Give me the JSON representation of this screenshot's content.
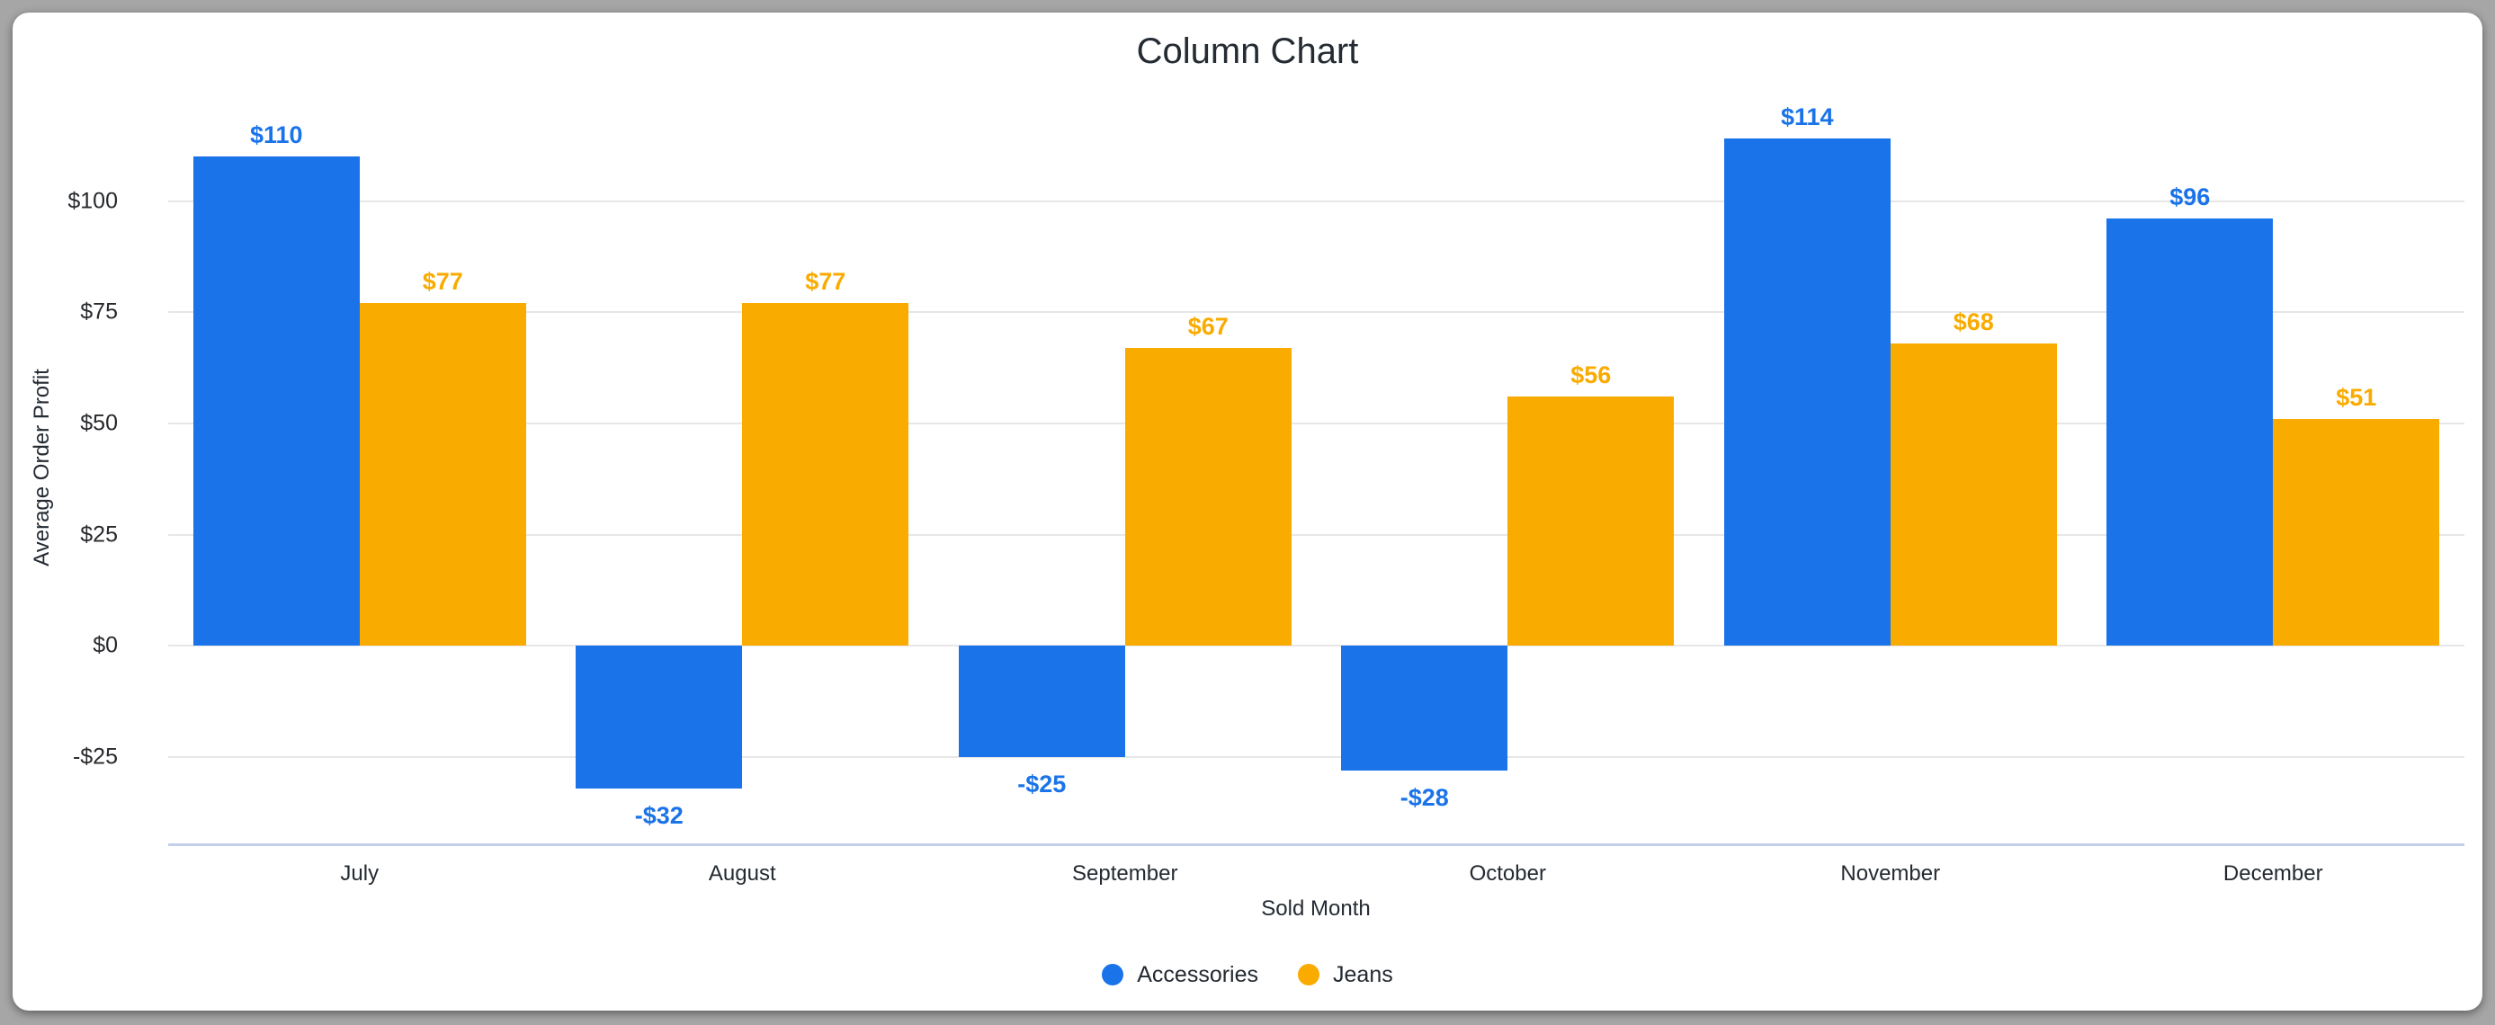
{
  "window": {
    "frame_color": "#a6a6a6",
    "card_color": "#ffffff"
  },
  "chart_data": {
    "type": "bar",
    "title": "Column Chart",
    "xlabel": "Sold Month",
    "ylabel": "Average Order Profit",
    "categories": [
      "July",
      "August",
      "September",
      "October",
      "November",
      "December"
    ],
    "series": [
      {
        "name": "Accessories",
        "color": "#1a73e8",
        "values": [
          110,
          -32,
          -25,
          -28,
          114,
          96
        ],
        "labels": [
          "$110",
          "-$32",
          "-$25",
          "-$28",
          "$114",
          "$96"
        ]
      },
      {
        "name": "Jeans",
        "color": "#f9ab00",
        "values": [
          77,
          77,
          67,
          56,
          68,
          51
        ],
        "labels": [
          "$77",
          "$77",
          "$67",
          "$56",
          "$68",
          "$51"
        ]
      }
    ],
    "y_ticks": [
      {
        "value": 100,
        "label": "$100"
      },
      {
        "value": 75,
        "label": "$75"
      },
      {
        "value": 50,
        "label": "$50"
      },
      {
        "value": 25,
        "label": "$25"
      },
      {
        "value": 0,
        "label": "$0"
      },
      {
        "value": -25,
        "label": "-$25"
      }
    ],
    "ylim": [
      -45,
      125
    ],
    "grid": true,
    "gridline_color": "#e7e7e7",
    "axis_line_color": "#c3cfe8",
    "legend_position": "bottom"
  }
}
